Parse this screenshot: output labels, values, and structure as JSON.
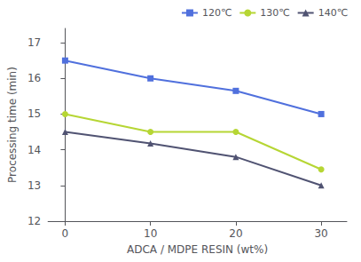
{
  "chart_data": {
    "type": "line",
    "x": [
      0,
      10,
      20,
      30
    ],
    "series": [
      {
        "name": "120℃",
        "marker": "square",
        "values": [
          16.5,
          16.0,
          15.65,
          15.0
        ]
      },
      {
        "name": "130℃",
        "marker": "circle",
        "values": [
          15.0,
          14.5,
          14.5,
          13.45
        ]
      },
      {
        "name": "140℃",
        "marker": "triangle",
        "values": [
          14.5,
          14.18,
          13.8,
          13.0
        ]
      }
    ],
    "xlabel": "ADCA / MDPE RESIN (wt%)",
    "ylabel": "Processing time (min)",
    "xlim": [
      -2,
      33
    ],
    "ylim": [
      12,
      17.4
    ],
    "xticks": [
      0,
      10,
      20,
      30
    ],
    "yticks": [
      12,
      13,
      14,
      15,
      16,
      17
    ],
    "grid": false,
    "legend": "upper right"
  }
}
